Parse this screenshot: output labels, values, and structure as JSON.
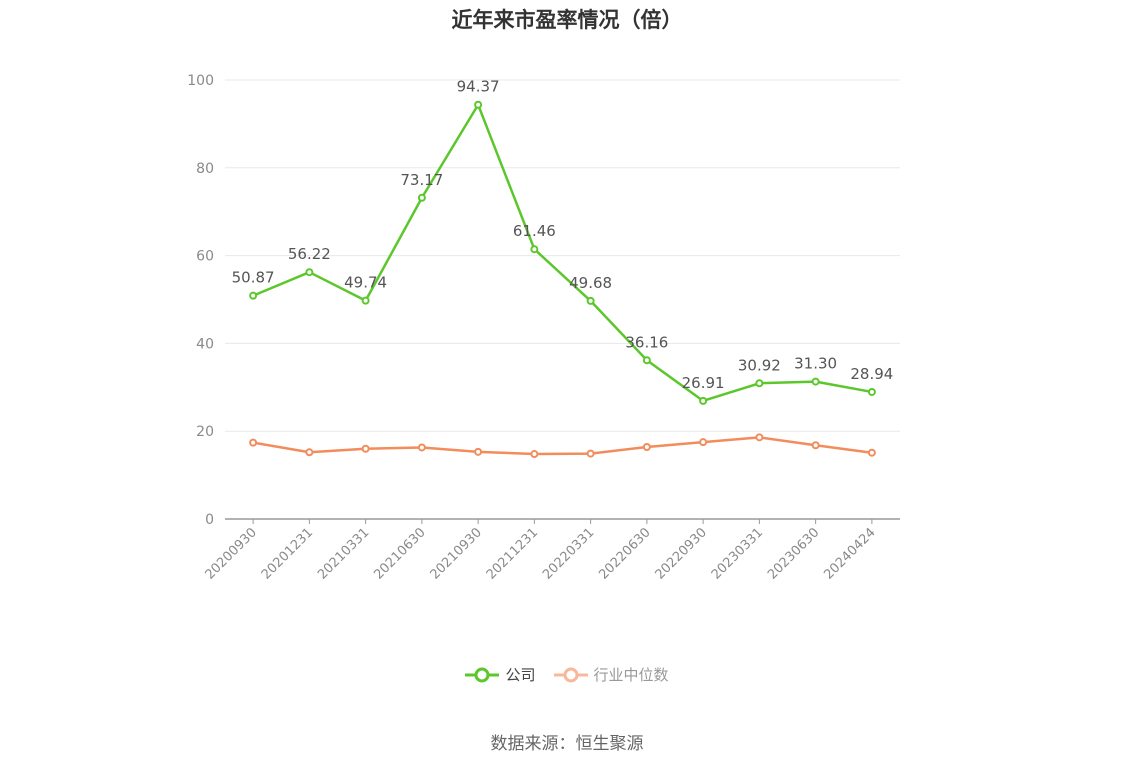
{
  "title": "近年来市盈率情况（倍）",
  "source": "数据来源：恒生聚源",
  "colors": {
    "company": "#5cc72b",
    "industry": "#f28c5c",
    "industry_legend": "#f7b89c",
    "grid": "#e6e8ee",
    "axis": "#999999"
  },
  "legend": {
    "company": "公司",
    "industry": "行业中位数"
  },
  "chart_data": {
    "type": "line",
    "title": "近年来市盈率情况（倍）",
    "xlabel": "",
    "ylabel": "",
    "ylim": [
      0,
      100
    ],
    "yticks": [
      0,
      20,
      40,
      60,
      80,
      100
    ],
    "grid": true,
    "legend_position": "bottom-center",
    "categories": [
      "20200930",
      "20201231",
      "20210331",
      "20210630",
      "20210930",
      "20211231",
      "20220331",
      "20220630",
      "20220930",
      "20230331",
      "20230630",
      "20240424"
    ],
    "series": [
      {
        "name": "公司",
        "values": [
          50.87,
          56.22,
          49.74,
          73.17,
          94.37,
          61.46,
          49.68,
          36.16,
          26.91,
          30.92,
          31.3,
          28.94
        ],
        "labels": [
          "50.87",
          "56.22",
          "49.74",
          "73.17",
          "94.37",
          "61.46",
          "49.68",
          "36.16",
          "26.91",
          "30.92",
          "31.30",
          "28.94"
        ]
      },
      {
        "name": "行业中位数",
        "values": [
          17.4,
          15.2,
          16.0,
          16.3,
          15.3,
          14.8,
          14.9,
          16.4,
          17.5,
          18.6,
          16.8,
          15.1
        ]
      }
    ]
  }
}
